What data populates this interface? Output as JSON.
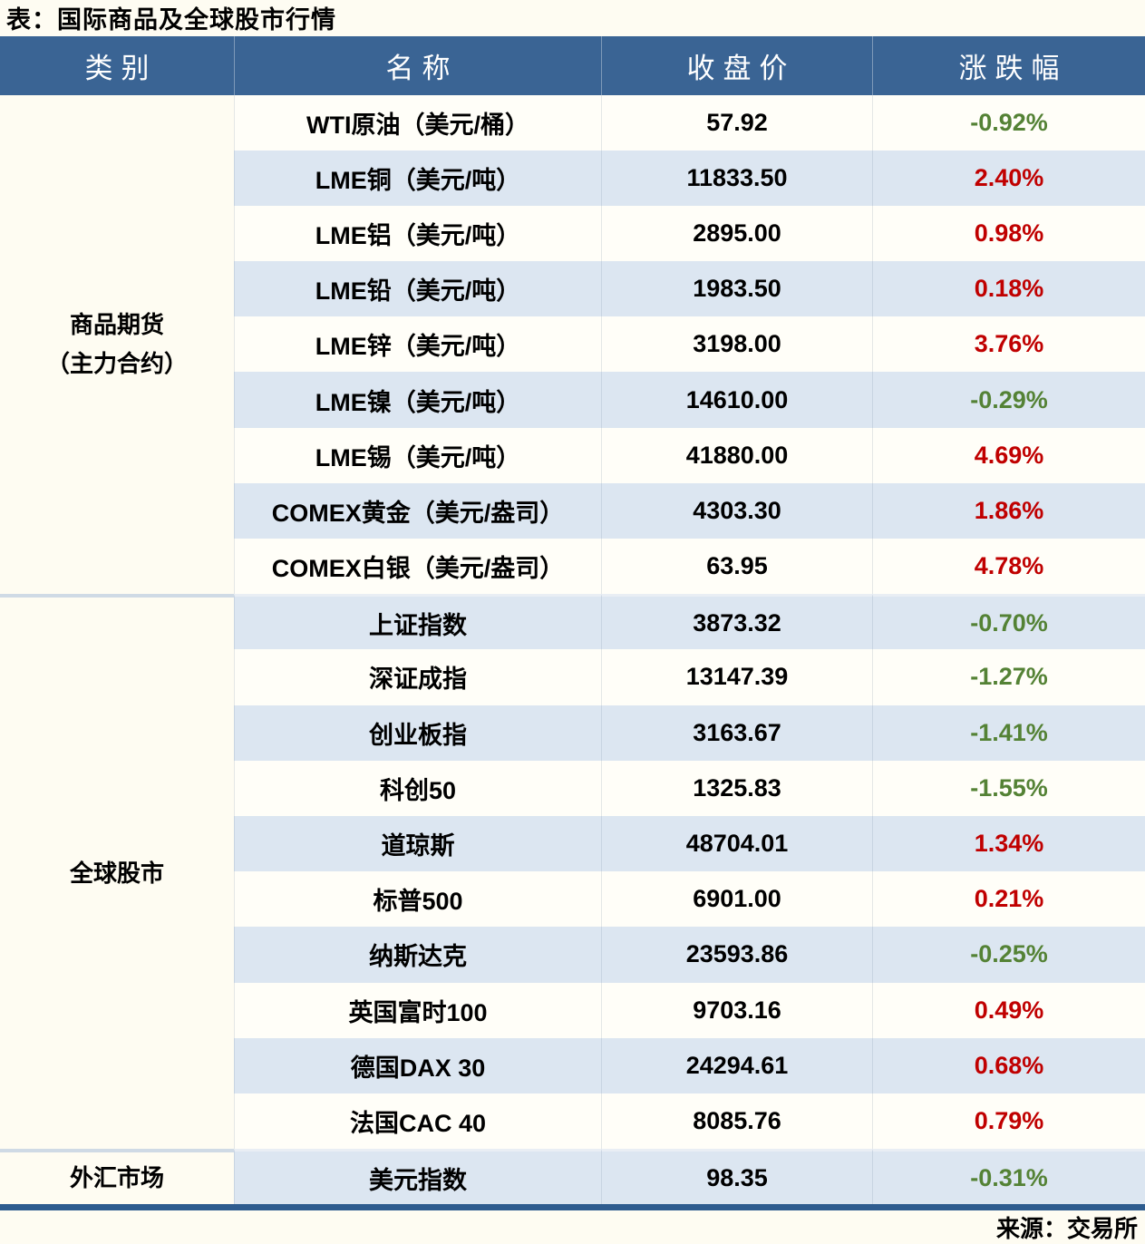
{
  "title": "表：国际商品及全球股市行情",
  "source": "来源：交易所",
  "colors": {
    "page_bg": "#fefcf2",
    "header_bg": "#3a6494",
    "row_bg": "#fffef8",
    "row_alt_bg": "#dce6f1",
    "bottom_border": "#2e5c8f",
    "up": "#c00000",
    "down": "#548235"
  },
  "table": {
    "headers": [
      "类别",
      "名称",
      "收盘价",
      "涨跌幅"
    ],
    "groups": [
      {
        "category_lines": [
          "商品期货",
          "（主力合约）"
        ],
        "rows": [
          {
            "name": "WTI原油（美元/桶）",
            "close": "57.92",
            "change": "-0.92%"
          },
          {
            "name": "LME铜（美元/吨）",
            "close": "11833.50",
            "change": "2.40%"
          },
          {
            "name": "LME铝（美元/吨）",
            "close": "2895.00",
            "change": "0.98%"
          },
          {
            "name": "LME铅（美元/吨）",
            "close": "1983.50",
            "change": "0.18%"
          },
          {
            "name": "LME锌（美元/吨）",
            "close": "3198.00",
            "change": "3.76%"
          },
          {
            "name": "LME镍（美元/吨）",
            "close": "14610.00",
            "change": "-0.29%"
          },
          {
            "name": "LME锡（美元/吨）",
            "close": "41880.00",
            "change": "4.69%"
          },
          {
            "name": "COMEX黄金（美元/盎司）",
            "close": "4303.30",
            "change": "1.86%"
          },
          {
            "name": "COMEX白银（美元/盎司）",
            "close": "63.95",
            "change": "4.78%"
          }
        ]
      },
      {
        "category_lines": [
          "全球股市"
        ],
        "rows": [
          {
            "name": "上证指数",
            "close": "3873.32",
            "change": "-0.70%"
          },
          {
            "name": "深证成指",
            "close": "13147.39",
            "change": "-1.27%"
          },
          {
            "name": "创业板指",
            "close": "3163.67",
            "change": "-1.41%"
          },
          {
            "name": "科创50",
            "close": "1325.83",
            "change": "-1.55%"
          },
          {
            "name": "道琼斯",
            "close": "48704.01",
            "change": "1.34%"
          },
          {
            "name": "标普500",
            "close": "6901.00",
            "change": "0.21%"
          },
          {
            "name": "纳斯达克",
            "close": "23593.86",
            "change": "-0.25%"
          },
          {
            "name": "英国富时100",
            "close": "9703.16",
            "change": "0.49%"
          },
          {
            "name": "德国DAX 30",
            "close": "24294.61",
            "change": "0.68%"
          },
          {
            "name": "法国CAC 40",
            "close": "8085.76",
            "change": "0.79%"
          }
        ]
      },
      {
        "category_lines": [
          "外汇市场"
        ],
        "rows": [
          {
            "name": "美元指数",
            "close": "98.35",
            "change": "-0.31%"
          }
        ]
      }
    ]
  }
}
